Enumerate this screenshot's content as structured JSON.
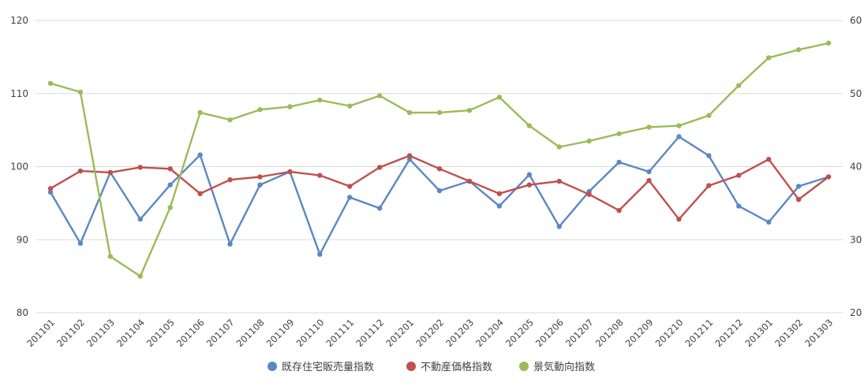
{
  "chart_data": {
    "type": "line",
    "title": "",
    "xlabel": "",
    "ylabel": "",
    "categories": [
      "201101",
      "201102",
      "201103",
      "201104",
      "201105",
      "201106",
      "201107",
      "201108",
      "201109",
      "201110",
      "201111",
      "201112",
      "201201",
      "201202",
      "201203",
      "201204",
      "201205",
      "201206",
      "201207",
      "201208",
      "201209",
      "201210",
      "201211",
      "201212",
      "201301",
      "201302",
      "201303"
    ],
    "y_left": {
      "min": 80,
      "max": 120,
      "ticks": [
        80,
        90,
        100,
        110,
        120
      ]
    },
    "y_right": {
      "min": 20,
      "max": 60,
      "ticks": [
        20,
        30,
        40,
        50,
        60
      ]
    },
    "grid": true,
    "legend_position": "bottom",
    "series": [
      {
        "name": "既存住宅販売量指数",
        "axis": "left",
        "color": "#5b87c4",
        "values": [
          96.5,
          89.5,
          99.2,
          92.8,
          97.5,
          101.6,
          89.4,
          97.5,
          99.3,
          88.0,
          95.8,
          94.3,
          101.0,
          96.7,
          98.0,
          94.6,
          98.9,
          91.8,
          96.6,
          100.6,
          99.3,
          104.1,
          101.5,
          94.6,
          92.4,
          97.3,
          98.6
        ]
      },
      {
        "name": "不動産価格指数",
        "axis": "left",
        "color": "#c0504d",
        "values": [
          97.0,
          99.4,
          99.2,
          99.9,
          99.7,
          96.3,
          98.2,
          98.6,
          99.3,
          98.8,
          97.3,
          99.9,
          101.5,
          99.7,
          98.0,
          96.3,
          97.5,
          98.0,
          96.2,
          94.0,
          98.1,
          92.8,
          97.4,
          98.8,
          101.0,
          95.5,
          98.6
        ]
      },
      {
        "name": "景気動向指数",
        "axis": "right",
        "color": "#9bbb59",
        "values": [
          51.4,
          50.2,
          27.7,
          25.0,
          34.4,
          47.4,
          46.4,
          47.8,
          48.2,
          49.1,
          48.3,
          49.7,
          47.4,
          47.4,
          47.7,
          49.5,
          45.6,
          42.7,
          43.5,
          44.5,
          45.4,
          45.6,
          47.0,
          51.1,
          54.9,
          56.0,
          56.9
        ]
      }
    ]
  }
}
